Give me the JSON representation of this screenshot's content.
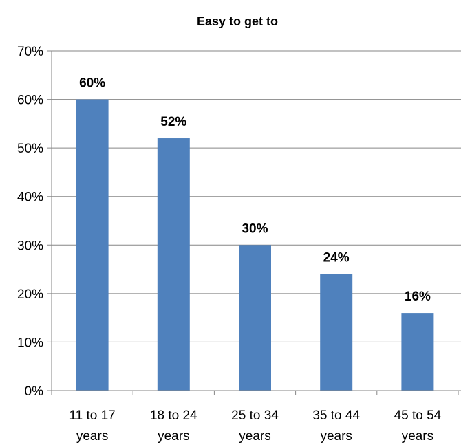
{
  "chart_data": {
    "type": "bar",
    "title": "Easy to get to",
    "categories": [
      "11 to 17 years",
      "18 to 24 years",
      "25 to 34 years",
      "35 to 44 years",
      "45 to 54 years"
    ],
    "category_lines": [
      [
        "11 to 17",
        "years"
      ],
      [
        "18 to 24",
        "years"
      ],
      [
        "25 to 34",
        "years"
      ],
      [
        "35 to 44",
        "years"
      ],
      [
        "45 to 54",
        "years"
      ]
    ],
    "values": [
      0.6,
      0.52,
      0.3,
      0.24,
      0.16
    ],
    "data_labels": [
      "60%",
      "52%",
      "30%",
      "24%",
      "16%"
    ],
    "y_ticks": [
      {
        "value": 0.0,
        "label": "0%"
      },
      {
        "value": 0.1,
        "label": "10%"
      },
      {
        "value": 0.2,
        "label": "20%"
      },
      {
        "value": 0.3,
        "label": "30%"
      },
      {
        "value": 0.4,
        "label": "40%"
      },
      {
        "value": 0.5,
        "label": "50%"
      },
      {
        "value": 0.6,
        "label": "60%"
      },
      {
        "value": 0.7,
        "label": "70%"
      }
    ],
    "ylim": [
      0,
      0.7
    ],
    "xlabel": "",
    "ylabel": "",
    "grid": true,
    "legend": "none",
    "colors": {
      "bar": "#4f81bd",
      "grid": "#868686",
      "axis": "#868686",
      "text": "#000000"
    }
  }
}
